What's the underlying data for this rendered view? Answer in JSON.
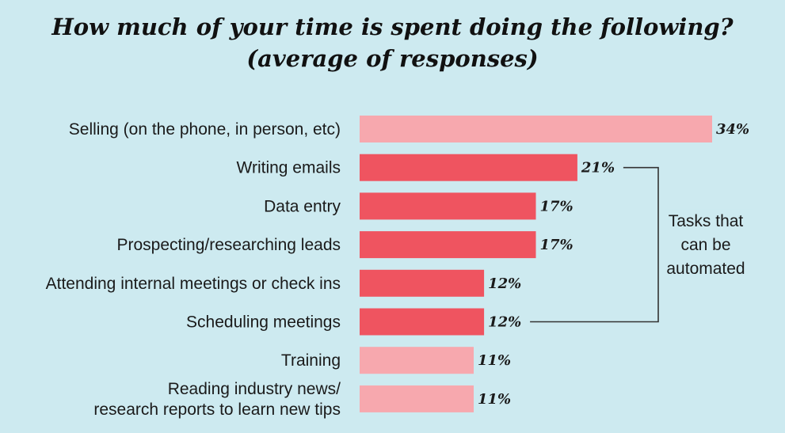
{
  "chart_data": {
    "type": "bar",
    "orientation": "horizontal",
    "title": "How much of your time is spent doing the following?",
    "subtitle": "(average of responses)",
    "categories": [
      [
        "Selling (on the phone, in person, etc)"
      ],
      [
        "Writing emails"
      ],
      [
        "Data entry"
      ],
      [
        "Prospecting/researching leads"
      ],
      [
        "Attending internal meetings or check ins"
      ],
      [
        "Scheduling meetings"
      ],
      [
        "Training"
      ],
      [
        "Reading industry news/",
        "research reports to learn new tips"
      ]
    ],
    "values": [
      34,
      21,
      17,
      17,
      12,
      12,
      11,
      11
    ],
    "value_labels": [
      "34%",
      "21%",
      "17%",
      "17%",
      "12%",
      "12%",
      "11%",
      "11%"
    ],
    "unit": "%",
    "highlighted": [
      false,
      true,
      true,
      true,
      true,
      true,
      false,
      false
    ],
    "xlim": [
      0,
      34
    ],
    "grid": false,
    "legend": "none",
    "annotation": {
      "lines": [
        "Tasks that",
        "can be",
        "automated"
      ],
      "from_category_index": 1,
      "to_category_index": 5
    },
    "colors": {
      "background": "#cdeaf0",
      "highlight_bar": "#ef5460",
      "normal_bar": "#f7a8ae",
      "text": "#1a1a1a",
      "bracket": "#333333"
    }
  }
}
